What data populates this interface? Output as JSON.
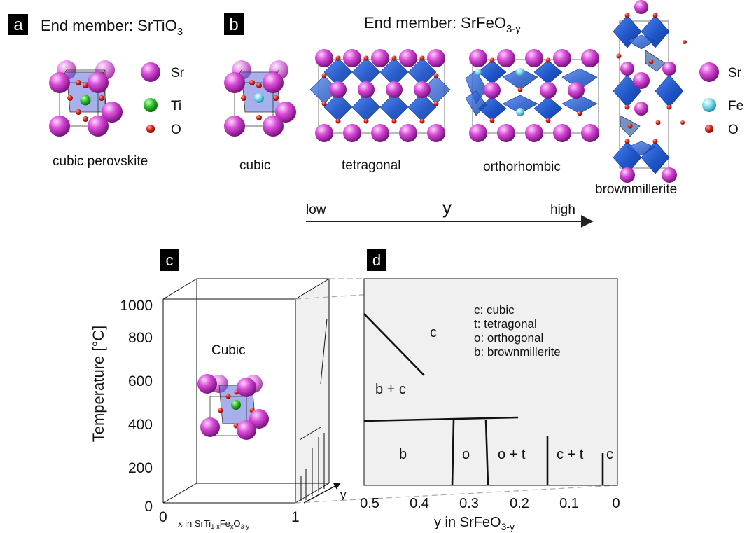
{
  "colors": {
    "sr": "#c02fc7",
    "ti": "#1fb526",
    "fe": "#7fdcef",
    "o": "#d9241b",
    "octahedron": "#2a5fd6",
    "octahedron_edge": "#123a9a",
    "panel_fill": "#f0f0f0",
    "badge": "#000000"
  },
  "panels": {
    "a": {
      "badge": "a",
      "title_prefix": "End member: SrTiO",
      "title_sub": "3",
      "legend": [
        "Sr",
        "Ti",
        "O"
      ],
      "caption": "cubic perovskite"
    },
    "b": {
      "badge": "b",
      "title_prefix": "End member: SrFeO",
      "title_sub": "3-y",
      "structures": [
        "cubic",
        "tetragonal",
        "orthorhombic",
        "brownmillerite"
      ],
      "legend": [
        "Sr",
        "Fe",
        "O"
      ],
      "arrow": {
        "low": "low",
        "var": "y",
        "high": "high"
      }
    },
    "c": {
      "badge": "c",
      "y_label": "Temperature [°C]",
      "y_ticks": [
        "1000",
        "800",
        "600",
        "400",
        "200",
        "0"
      ],
      "x_ticks": [
        "0",
        "1"
      ],
      "x_label_parts": [
        "x in SrTi",
        "1-x",
        "Fe",
        "x",
        "O",
        "3-y"
      ],
      "depth_label": "y",
      "region_label": "Cubic"
    },
    "d": {
      "badge": "d",
      "x_ticks": [
        "0.5",
        "0.4",
        "0.3",
        "0.2",
        "0.1",
        "0"
      ],
      "x_label_prefix": "y in SrFeO",
      "x_label_sub": "3-y",
      "regions": [
        "c",
        "b + c",
        "b",
        "o",
        "o + t",
        "c + t",
        "c"
      ],
      "legend": [
        "c: cubic",
        "t: tetragonal",
        "o: orthogonal",
        "b: brownmillerite"
      ]
    }
  }
}
